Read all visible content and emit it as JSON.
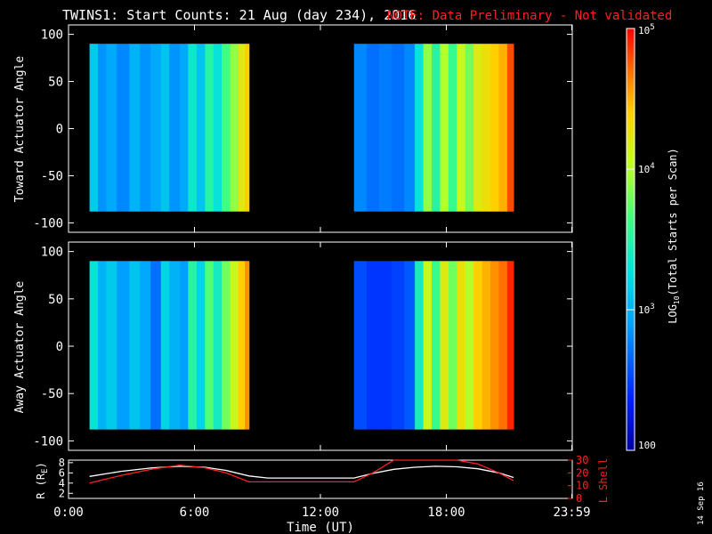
{
  "title": {
    "main": "TWINS1: Start Counts: 21 Aug (day 234), 2016",
    "note": "NOTE: Data Preliminary - Not validated"
  },
  "date_stamp": "14 Sep 16",
  "chart_data": [
    {
      "type": "heatmap",
      "name": "toward",
      "ylabel": "Toward Actuator Angle",
      "ylim": [
        -110,
        110
      ],
      "yticks": [
        100,
        50,
        0,
        -50,
        -100
      ],
      "xlim_hours": [
        0,
        24
      ],
      "coverage_hours": [
        [
          1.0,
          8.6
        ],
        [
          13.6,
          21.2
        ]
      ],
      "angle_range": [
        -88,
        90
      ],
      "columns": [
        {
          "t": 1.0,
          "logv": 3.15
        },
        {
          "t": 1.4,
          "logv": 2.85
        },
        {
          "t": 1.8,
          "logv": 2.95
        },
        {
          "t": 2.3,
          "logv": 2.8
        },
        {
          "t": 2.9,
          "logv": 3.0
        },
        {
          "t": 3.4,
          "logv": 2.85
        },
        {
          "t": 3.9,
          "logv": 2.95
        },
        {
          "t": 4.4,
          "logv": 3.1
        },
        {
          "t": 4.8,
          "logv": 2.85
        },
        {
          "t": 5.3,
          "logv": 2.95
        },
        {
          "t": 5.7,
          "logv": 3.35
        },
        {
          "t": 6.1,
          "logv": 3.1
        },
        {
          "t": 6.5,
          "logv": 3.5
        },
        {
          "t": 6.9,
          "logv": 3.3
        },
        {
          "t": 7.3,
          "logv": 3.65
        },
        {
          "t": 7.7,
          "logv": 3.9
        },
        {
          "t": 8.1,
          "logv": 4.2
        },
        {
          "t": 8.4,
          "logv": 4.4
        },
        {
          "t": 13.6,
          "logv": 2.8
        },
        {
          "t": 14.2,
          "logv": 2.7
        },
        {
          "t": 14.8,
          "logv": 2.75
        },
        {
          "t": 15.4,
          "logv": 2.7
        },
        {
          "t": 16.0,
          "logv": 2.8
        },
        {
          "t": 16.5,
          "logv": 3.3
        },
        {
          "t": 16.9,
          "logv": 3.9
        },
        {
          "t": 17.3,
          "logv": 3.5
        },
        {
          "t": 17.7,
          "logv": 4.0
        },
        {
          "t": 18.1,
          "logv": 3.6
        },
        {
          "t": 18.5,
          "logv": 4.1
        },
        {
          "t": 18.9,
          "logv": 3.8
        },
        {
          "t": 19.3,
          "logv": 4.2
        },
        {
          "t": 19.7,
          "logv": 4.3
        },
        {
          "t": 20.1,
          "logv": 4.4
        },
        {
          "t": 20.5,
          "logv": 4.5
        },
        {
          "t": 20.9,
          "logv": 4.8
        }
      ]
    },
    {
      "type": "heatmap",
      "name": "away",
      "ylabel": "Away Actuator Angle",
      "ylim": [
        -110,
        110
      ],
      "yticks": [
        100,
        50,
        0,
        -50,
        -100
      ],
      "xlim_hours": [
        0,
        24
      ],
      "coverage_hours": [
        [
          1.0,
          8.6
        ],
        [
          13.6,
          21.2
        ]
      ],
      "angle_range": [
        -88,
        90
      ],
      "columns": [
        {
          "t": 1.0,
          "logv": 3.3
        },
        {
          "t": 1.4,
          "logv": 3.0
        },
        {
          "t": 1.8,
          "logv": 3.15
        },
        {
          "t": 2.3,
          "logv": 2.9
        },
        {
          "t": 2.9,
          "logv": 3.1
        },
        {
          "t": 3.4,
          "logv": 2.95
        },
        {
          "t": 3.9,
          "logv": 2.7
        },
        {
          "t": 4.4,
          "logv": 3.2
        },
        {
          "t": 4.8,
          "logv": 3.0
        },
        {
          "t": 5.3,
          "logv": 2.9
        },
        {
          "t": 5.7,
          "logv": 3.5
        },
        {
          "t": 6.1,
          "logv": 3.2
        },
        {
          "t": 6.5,
          "logv": 3.7
        },
        {
          "t": 6.9,
          "logv": 3.4
        },
        {
          "t": 7.3,
          "logv": 3.8
        },
        {
          "t": 7.7,
          "logv": 4.1
        },
        {
          "t": 8.1,
          "logv": 4.4
        },
        {
          "t": 8.4,
          "logv": 4.6
        },
        {
          "t": 13.6,
          "logv": 2.55
        },
        {
          "t": 14.2,
          "logv": 2.45
        },
        {
          "t": 14.8,
          "logv": 2.45
        },
        {
          "t": 15.4,
          "logv": 2.5
        },
        {
          "t": 16.0,
          "logv": 2.6
        },
        {
          "t": 16.5,
          "logv": 3.4
        },
        {
          "t": 16.9,
          "logv": 4.1
        },
        {
          "t": 17.3,
          "logv": 3.6
        },
        {
          "t": 17.7,
          "logv": 4.2
        },
        {
          "t": 18.1,
          "logv": 3.8
        },
        {
          "t": 18.5,
          "logv": 4.3
        },
        {
          "t": 18.9,
          "logv": 4.0
        },
        {
          "t": 19.3,
          "logv": 4.4
        },
        {
          "t": 19.7,
          "logv": 4.5
        },
        {
          "t": 20.1,
          "logv": 4.6
        },
        {
          "t": 20.5,
          "logv": 4.7
        },
        {
          "t": 20.9,
          "logv": 4.9
        }
      ]
    },
    {
      "type": "line",
      "name": "orbit",
      "xlabel": "Time (UT)",
      "xticks": [
        "0:00",
        "6:00",
        "12:00",
        "18:00",
        "23:59"
      ],
      "xtick_hours": [
        0,
        6,
        12,
        18,
        23.98
      ],
      "ylabel_left": "R (R_E)",
      "ylim_left": [
        1,
        8.5
      ],
      "yticks_left": [
        2,
        4,
        6,
        8
      ],
      "ylabel_right": "L Shell",
      "ylim_right": [
        0,
        30
      ],
      "yticks_right": [
        0,
        10,
        20,
        30
      ],
      "series": [
        {
          "name": "R (R_E)",
          "axis": "left",
          "color": "#ffffff",
          "x": [
            1.0,
            2.5,
            4.0,
            5.3,
            6.5,
            7.5,
            8.6,
            9.5,
            13.6,
            14.5,
            15.5,
            16.5,
            17.5,
            18.5,
            19.5,
            20.5,
            21.2
          ],
          "y": [
            5.3,
            6.3,
            7.0,
            7.3,
            7.1,
            6.5,
            5.4,
            5.0,
            5.0,
            5.9,
            6.7,
            7.1,
            7.3,
            7.2,
            6.8,
            6.0,
            5.1
          ]
        },
        {
          "name": "L Shell",
          "axis": "right",
          "color": "#ff2020",
          "x": [
            1.0,
            2.5,
            4.0,
            5.3,
            6.5,
            7.5,
            8.6,
            9.5,
            13.6,
            14.5,
            15.5,
            16.5,
            17.5,
            18.5,
            19.5,
            20.5,
            21.2
          ],
          "y": [
            12,
            18,
            23,
            26,
            24,
            20,
            13,
            13,
            13,
            20,
            31,
            31,
            31,
            31,
            27,
            20,
            14
          ]
        }
      ]
    }
  ],
  "colorbar": {
    "label_prefix": "LOG",
    "label_sub": "10",
    "label_suffix": "(Total Starts per Scan)",
    "range_log": [
      2,
      5
    ],
    "ticks": [
      {
        "log": 5,
        "base": "10",
        "exp": "5"
      },
      {
        "log": 4,
        "base": "10",
        "exp": "4"
      },
      {
        "log": 3,
        "base": "10",
        "exp": "3"
      },
      {
        "log": 2,
        "base": "100",
        "exp": ""
      }
    ]
  }
}
